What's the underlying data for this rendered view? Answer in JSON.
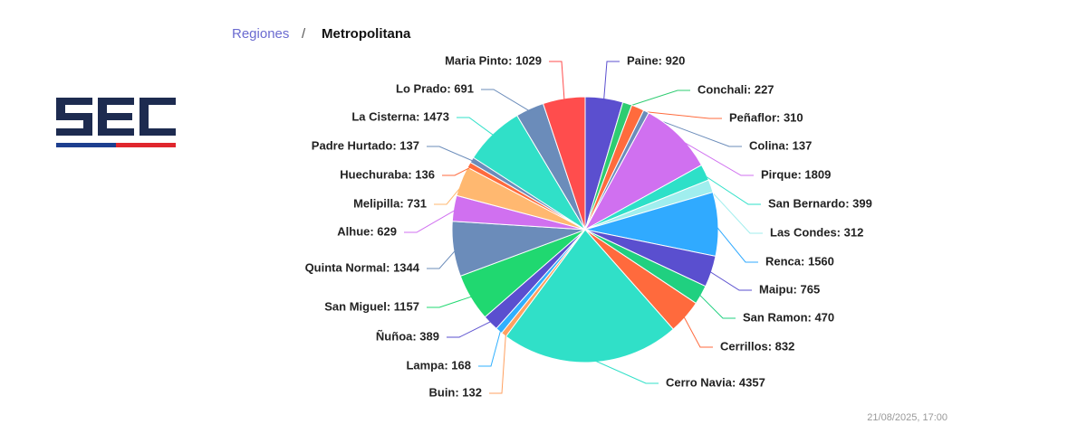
{
  "breadcrumb": {
    "parent": "Regiones",
    "separator": "/",
    "current": "Metropolitana"
  },
  "timestamp": "21/08/2025, 17:00",
  "chart_data": {
    "type": "pie",
    "categories": [
      "Paine",
      "Conchali",
      "Peñaflor",
      "Colina",
      "Pirque",
      "San Bernardo",
      "Las Condes",
      "Renca",
      "Maipu",
      "San Ramon",
      "Cerrillos",
      "Cerro Navia",
      "Buin",
      "Lampa",
      "Ñuñoa",
      "San Miguel",
      "Quinta Normal",
      "Alhue",
      "Melipilla",
      "Huechuraba",
      "Padre Hurtado",
      "La Cisterna",
      "Lo Prado",
      "Maria Pinto"
    ],
    "values": [
      920,
      227,
      310,
      137,
      1809,
      399,
      312,
      1560,
      765,
      470,
      832,
      4357,
      132,
      168,
      389,
      1157,
      1344,
      629,
      731,
      136,
      137,
      1473,
      691,
      1029
    ],
    "value_labels": [
      "Paine: 920",
      "Conchali: 227",
      "Peñaflor: 310",
      "Colina: 137",
      "Pirque: 1809",
      "San Bernardo: 399",
      "Las Condes: 312",
      "Renca: 1560",
      "Maipu: 765",
      "San Ramon: 470",
      "Cerrillos: 832",
      "Cerro Navia: 4357",
      "Buin: 132",
      "Lampa: 168",
      "Ñuñoa: 389",
      "San Miguel: 1157",
      "Quinta Normal: 1344",
      "Alhue: 629",
      "Melipilla: 731",
      "Huechuraba: 136",
      "Padre Hurtado: 137",
      "La Cisterna: 1473",
      "Lo Prado: 691",
      "Maria Pinto: 1029"
    ],
    "colors": [
      "#5b4fcf",
      "#2ecc71",
      "#ff6b3d",
      "#6b8cba",
      "#d070f0",
      "#2de0c8",
      "#a0eeee",
      "#30aaff",
      "#5a4fcf",
      "#20d080",
      "#ff6a3d",
      "#30e0c8",
      "#ffa060",
      "#30b0ff",
      "#5a4fcf",
      "#20d870",
      "#6b8cba",
      "#d070f0",
      "#ffb870",
      "#ff6a3d",
      "#6b8cba",
      "#30e0c8",
      "#6b8cba",
      "#ff4d4d"
    ]
  }
}
